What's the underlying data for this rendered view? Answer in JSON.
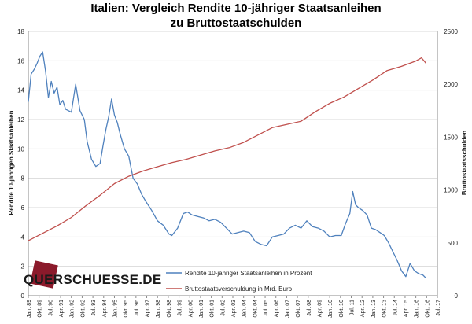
{
  "title_line1": "Italien: Vergleich Rendite 10-jähriger Staatsanleihen",
  "title_line2": "zu Bruttostaatschulden",
  "brand": "QUERSCHUESSE.DE",
  "colors": {
    "yield": "#4f81bd",
    "debt": "#c0504d",
    "grid": "#d9d9d9",
    "axis": "#888888",
    "brand_mark": "#8b1a2b"
  },
  "chart_data": {
    "type": "line",
    "ylabel_left": "Rendite 10-jährigen Staatsanleihen",
    "ylabel_right": "Bruttostaatsschulden",
    "ylim_left": [
      0,
      18
    ],
    "ylim_right": [
      0,
      2500
    ],
    "yticks_left": [
      "0",
      "2",
      "4",
      "6",
      "8",
      "10",
      "12",
      "14",
      "16",
      "18"
    ],
    "yticks_right": [
      "0",
      "500",
      "1000",
      "1500",
      "2000",
      "2500"
    ],
    "xlim": [
      1989.0,
      2017.5
    ],
    "x_tick_labels": [
      "Jan. 89",
      "Okt. 89",
      "Jul. 90",
      "Apr. 91",
      "Jan. 92",
      "Okt. 92",
      "Jul. 93",
      "Apr. 94",
      "Jan. 95",
      "Okt. 95",
      "Jul. 96",
      "Apr. 97",
      "Jan. 98",
      "Okt. 98",
      "Jul. 99",
      "Apr. 00",
      "Jan. 01",
      "Okt. 01",
      "Jul. 02",
      "Apr. 03",
      "Jan. 04",
      "Okt. 04",
      "Jul. 05",
      "Apr. 06",
      "Jan. 07",
      "Okt. 07",
      "Jul. 08",
      "Apr. 09",
      "Jan. 10",
      "Okt. 10",
      "Jul. 11",
      "Apr. 12",
      "Jan. 13",
      "Okt. 13",
      "Jul. 14",
      "Apr. 15",
      "Jan. 16",
      "Okt. 16",
      "Jul. 17"
    ],
    "grid": "horizontal",
    "legend_position": "bottom-right",
    "series": [
      {
        "name": "Rendite 10-jähriger Staatsanleihen in Prozent",
        "axis": "left",
        "x": [
          1989.0,
          1989.2,
          1989.4,
          1989.6,
          1989.8,
          1990.0,
          1990.2,
          1990.4,
          1990.6,
          1990.8,
          1991.0,
          1991.2,
          1991.4,
          1991.6,
          1991.8,
          1992.0,
          1992.3,
          1992.6,
          1992.9,
          1993.1,
          1993.4,
          1993.7,
          1994.0,
          1994.2,
          1994.4,
          1994.6,
          1994.8,
          1995.0,
          1995.2,
          1995.4,
          1995.7,
          1996.0,
          1996.3,
          1996.6,
          1996.9,
          1997.2,
          1997.6,
          1998.0,
          1998.4,
          1998.8,
          1999.0,
          1999.4,
          1999.8,
          2000.1,
          2000.4,
          2000.8,
          2001.2,
          2001.6,
          2002.0,
          2002.4,
          2002.8,
          2003.2,
          2003.6,
          2004.0,
          2004.4,
          2004.8,
          2005.2,
          2005.6,
          2006.0,
          2006.4,
          2006.8,
          2007.2,
          2007.6,
          2008.0,
          2008.4,
          2008.8,
          2009.2,
          2009.6,
          2010.0,
          2010.4,
          2010.8,
          2011.1,
          2011.4,
          2011.6,
          2011.8,
          2012.0,
          2012.3,
          2012.6,
          2012.9,
          2013.2,
          2013.5,
          2013.8,
          2014.1,
          2014.4,
          2014.7,
          2015.0,
          2015.3,
          2015.6,
          2015.9,
          2016.2,
          2016.5,
          2016.7
        ],
        "y": [
          13.2,
          15.1,
          15.4,
          15.8,
          16.3,
          16.6,
          15.3,
          13.5,
          14.6,
          13.8,
          14.2,
          13.0,
          13.3,
          12.7,
          12.6,
          12.5,
          14.4,
          12.6,
          12.0,
          10.5,
          9.3,
          8.8,
          9.0,
          10.2,
          11.3,
          12.2,
          13.4,
          12.3,
          11.8,
          11.0,
          10.0,
          9.5,
          8.0,
          7.6,
          6.9,
          6.4,
          5.8,
          5.1,
          4.8,
          4.2,
          4.1,
          4.6,
          5.6,
          5.7,
          5.5,
          5.4,
          5.3,
          5.1,
          5.2,
          5.0,
          4.6,
          4.2,
          4.3,
          4.4,
          4.3,
          3.7,
          3.5,
          3.4,
          4.0,
          4.1,
          4.2,
          4.6,
          4.8,
          4.6,
          5.1,
          4.7,
          4.6,
          4.4,
          4.0,
          4.1,
          4.1,
          4.9,
          5.6,
          7.1,
          6.2,
          6.0,
          5.8,
          5.5,
          4.6,
          4.5,
          4.3,
          4.1,
          3.6,
          3.0,
          2.4,
          1.7,
          1.3,
          2.2,
          1.7,
          1.5,
          1.4,
          1.2
        ]
      },
      {
        "name": "Bruttostaatsverschuldung in Mrd. Euro",
        "axis": "right",
        "x": [
          1989.0,
          1990.0,
          1991.0,
          1992.0,
          1993.0,
          1994.0,
          1995.0,
          1996.0,
          1997.0,
          1998.0,
          1999.0,
          2000.0,
          2001.0,
          2002.0,
          2003.0,
          2004.0,
          2005.0,
          2006.0,
          2007.0,
          2008.0,
          2009.0,
          2010.0,
          2011.0,
          2012.0,
          2013.0,
          2014.0,
          2015.0,
          2016.0,
          2016.4,
          2016.7
        ],
        "y": [
          520,
          590,
          660,
          740,
          850,
          950,
          1060,
          1130,
          1180,
          1220,
          1260,
          1290,
          1330,
          1370,
          1400,
          1450,
          1520,
          1590,
          1620,
          1650,
          1740,
          1820,
          1880,
          1960,
          2040,
          2130,
          2170,
          2220,
          2250,
          2200
        ]
      }
    ]
  }
}
